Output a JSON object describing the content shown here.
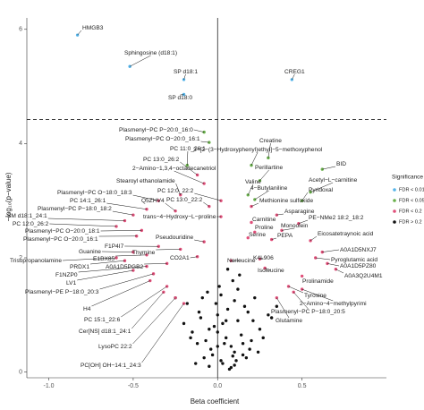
{
  "chart_data": {
    "type": "scatter",
    "x_label": "Beta coefficient",
    "y_label": "−log₁₀(p−value)",
    "legend_title": "Significance",
    "legend_position": "right",
    "xlim": [
      -1.13,
      1.0
    ],
    "ylim": [
      -0.1,
      6.2
    ],
    "xticks": [
      {
        "value": -1.0,
        "label": "-1.0"
      },
      {
        "value": -0.5,
        "label": "-0.5"
      },
      {
        "value": 0,
        "label": "0.0"
      },
      {
        "value": 0.5,
        "label": "0.5"
      }
    ],
    "yticks": [
      0,
      2,
      4,
      6
    ],
    "threshold": 4.42,
    "vline": 0,
    "series": [
      {
        "name": "FDR < 0.01",
        "color": "#56b4e9",
        "x": [
          -0.83,
          -0.52,
          -0.2,
          0.44,
          -0.2
        ],
        "values": [
          5.9,
          5.35,
          5.12,
          5.12,
          4.86
        ],
        "labels": [
          "HMGB3",
          "Sphingosine (d18:1)",
          "SP d18:1",
          "CREG1",
          "SP d18:0"
        ]
      },
      {
        "name": "FDR < 0.05",
        "color": "#6ab04c",
        "x": [
          -0.08,
          -0.05,
          -0.18,
          0.3,
          0.2,
          0.62,
          0.25,
          0.55,
          0.18,
          0.22,
          0.5
        ],
        "values": [
          4.2,
          4.02,
          3.62,
          3.75,
          3.62,
          3.55,
          3.35,
          3.15,
          3.1,
          3.02,
          3.0
        ],
        "labels": [
          "Plasmenyl−PC P−20:0_16:0",
          "Plasmenyl−PC O−20:0_16:1",
          "PC 11:0_26:1",
          "Creatine",
          "3−[2−(3−Hydroxyphenyl)ethyl]−5−methoxyphenol",
          "BID",
          "Perillartine",
          "Acetyl−L−carnitine",
          "Valine",
          "4−Butylaniline",
          "Pyridoxal"
        ]
      },
      {
        "name": "FDR < 0.2",
        "color": "#e0507a",
        "x": [
          -0.12,
          -0.08,
          -0.22,
          -0.35,
          -0.42,
          -0.5,
          -0.25,
          -0.55,
          -0.6,
          0.02,
          -0.05,
          0.02,
          0.2,
          0.35,
          0.2,
          0.48,
          0.38,
          0.22,
          0.18,
          0.32,
          0.55,
          -0.45,
          -0.48,
          -0.08,
          -0.35,
          -0.5,
          -0.22,
          -0.42,
          -0.6,
          -0.55,
          -0.12,
          0.62,
          0.58,
          0.25,
          0.08,
          0.65,
          0.28,
          0.7,
          -0.3,
          -0.42,
          -0.5,
          -0.38,
          -0.4,
          -0.3,
          0.5,
          0.42,
          0.5,
          0.45,
          0.35,
          -0.32,
          -0.25,
          -0.2
        ],
        "values": [
          3.45,
          3.3,
          3.1,
          3.0,
          2.85,
          2.75,
          2.82,
          2.65,
          2.55,
          3.0,
          2.9,
          2.72,
          2.9,
          2.75,
          2.62,
          2.6,
          2.48,
          2.45,
          2.35,
          2.32,
          2.3,
          2.48,
          2.38,
          2.28,
          2.2,
          2.1,
          2.15,
          2.05,
          2.0,
          1.95,
          2.02,
          2.1,
          2.0,
          1.98,
          1.95,
          1.9,
          1.82,
          1.8,
          1.9,
          1.85,
          1.78,
          1.72,
          1.6,
          1.5,
          1.68,
          1.5,
          1.45,
          1.4,
          1.3,
          1.4,
          1.3,
          1.2
        ],
        "labels": [
          "PC 13:0_26:2",
          "2−Amino−1,3,4−octadecanetriol",
          "Stearoyl ethanolamide",
          "Plasmenyl−PC O−18:0_18:3",
          "PC 14:1_26:1",
          "Plasmenyl−PC P−18:0_18:2",
          "Q5ZHV4",
          "SM d18:1_24:1",
          "PC 12:0_26:2",
          "PC 12:0_22:2",
          "PC 13:0_22:2",
          "trans−4−Hydroxy−L−proline",
          "Methionine sulfoxide",
          "Asparagine",
          "Carnitine",
          "PE−NMe2 18:2_18:2",
          "Monoolein",
          "Proline",
          "Serine",
          "PEPA",
          "Eicosatetraynoic acid",
          "Plasmenyl−PC O−20:0_18:1",
          "Plasmenyl−PC O−20:0_16:1",
          "Pseudouridine",
          "F1P4I7",
          "Guanine",
          "Thymine",
          "E1BX85",
          "Trisopropanolamine",
          "PRDX1",
          "CO2A1",
          "A0A1D5NXJ7",
          "Pyroglutamic acid",
          "K4L906",
          "Norleucine",
          "A0A1D5PZ80",
          "Isoleucine",
          "A0A3Q2U4M1",
          "A0A1D5PGB2",
          "F1NZP0",
          "LV1",
          "Plasmenyl−PE P−18:0_20:3",
          "H4",
          "PC 15:1_22:6",
          "Prolinamide",
          "Tyrosine",
          "2−Amino−4−methylpyrimi",
          "Plasmenyl−PC P−18:0_20:5",
          "Glutamine",
          "Cer[NS] d18:1_24:1",
          "LysoPC 22:2",
          "PC[OH] OH−14:1_24:3"
        ]
      },
      {
        "name": "FDR > 0.2",
        "color": "#111111",
        "x": [
          -0.05,
          0.02,
          0.1,
          -0.12,
          0.15,
          0.05,
          -0.08,
          0.2,
          -0.02,
          0.08,
          0.12,
          -0.15,
          0.25,
          0.0,
          0.06,
          -0.1,
          0.18,
          0.03,
          -0.04,
          0.1,
          0.22,
          -0.18,
          0.07,
          0.14,
          -0.06,
          0.01,
          0.3,
          -0.2,
          0.09,
          0.16,
          -0.03,
          0.04,
          0.11,
          -0.09,
          0.19,
          0.0,
          0.13,
          -0.13,
          0.27,
          0.05,
          -0.01,
          0.08,
          0.21,
          -0.07,
          0.02,
          0.17,
          -0.11,
          0.12,
          0.35,
          -0.25,
          0.06,
          0.0,
          0.1,
          -0.05,
          0.24,
          0.03,
          -0.16,
          0.09,
          0.15,
          0.32
        ],
        "values": [
          0.1,
          0.2,
          0.35,
          0.5,
          0.3,
          0.6,
          0.25,
          0.55,
          0.8,
          0.45,
          0.9,
          0.7,
          0.75,
          1.0,
          1.1,
          0.95,
          1.05,
          0.15,
          0.4,
          1.25,
          1.3,
          1.2,
          0.05,
          0.65,
          1.4,
          1.5,
          1.0,
          0.85,
          1.6,
          1.15,
          0.3,
          0.5,
          0.2,
          1.3,
          0.4,
          0.7,
          1.7,
          0.15,
          0.6,
          0.9,
          1.2,
          0.08,
          0.9,
          0.55,
          1.35,
          0.25,
          1.05,
          1.45,
          1.15,
          1.3,
          1.8,
          0.45,
          0.12,
          0.75,
          0.35,
          0.85,
          0.6,
          0.28,
          0.5,
          0.95
        ]
      }
    ]
  }
}
